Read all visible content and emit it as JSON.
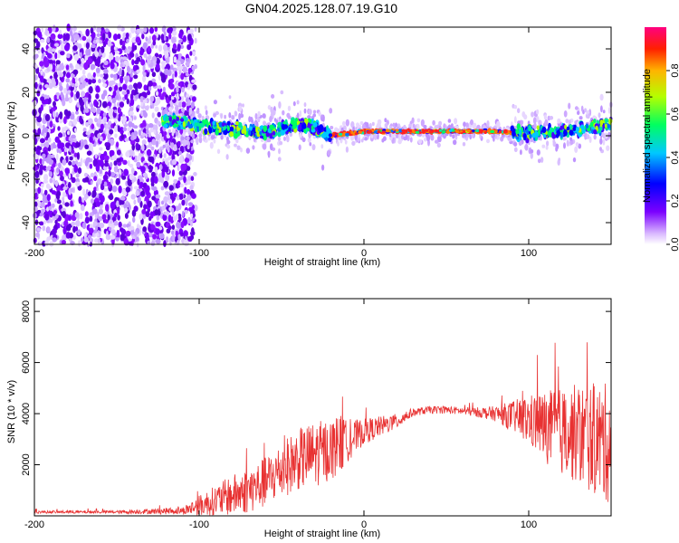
{
  "title": "GN04.2025.128.07.19.G10",
  "colors": {
    "snr_line": "#e83232",
    "frame": "#000000"
  },
  "chart_data": [
    {
      "type": "heatmap",
      "xlabel": "Height of straight line (km)",
      "ylabel": "Frequency (Hz)",
      "xlim": [
        -200,
        150
      ],
      "ylim": [
        -50,
        50
      ],
      "x_ticks": [
        -200,
        -100,
        0,
        100
      ],
      "y_ticks": [
        -40,
        -20,
        0,
        20,
        40
      ],
      "colorbar": {
        "label": "Normalized spectral amplitude",
        "range": [
          0,
          1
        ],
        "ticks": [
          0.0,
          0.2,
          0.4,
          0.6,
          0.8
        ]
      },
      "ridge": {
        "x": [
          -120,
          -100,
          -80,
          -60,
          -40,
          -30,
          -20,
          -10,
          0,
          20,
          40,
          60,
          80,
          100,
          120,
          150
        ],
        "y": [
          7,
          5,
          3,
          2,
          5,
          4,
          0,
          1,
          2,
          2,
          2,
          2,
          2,
          1,
          2,
          5
        ]
      }
    },
    {
      "type": "line",
      "xlabel": "Height of straight line (km)",
      "ylabel": "SNR (10 * v/v)",
      "xlim": [
        -200,
        150
      ],
      "ylim": [
        0,
        8500
      ],
      "x_ticks": [
        -200,
        -100,
        0,
        100
      ],
      "y_ticks": [
        2000,
        4000,
        6000,
        8000
      ],
      "series": [
        {
          "x": [
            -200,
            -150,
            -110,
            -100,
            -90,
            -80,
            -70,
            -60,
            -50,
            -40,
            -30,
            -20,
            -15,
            -10,
            0,
            10,
            20,
            25,
            30,
            40,
            50,
            60,
            70,
            80,
            90,
            100,
            110,
            120,
            130,
            140,
            150
          ],
          "y": [
            150,
            150,
            200,
            400,
            600,
            800,
            1000,
            1300,
            1800,
            2200,
            2400,
            2600,
            2800,
            2900,
            3300,
            3500,
            3700,
            3900,
            4050,
            4150,
            4150,
            4100,
            4050,
            4000,
            3900,
            3750,
            3500,
            3300,
            3200,
            3000,
            2800
          ],
          "noise": [
            50,
            60,
            150,
            400,
            600,
            800,
            900,
            1000,
            1100,
            1200,
            1300,
            1200,
            1200,
            800,
            500,
            400,
            300,
            250,
            150,
            150,
            150,
            150,
            200,
            300,
            600,
            1000,
            1400,
            1700,
            2000,
            2200,
            2400
          ]
        }
      ]
    }
  ]
}
